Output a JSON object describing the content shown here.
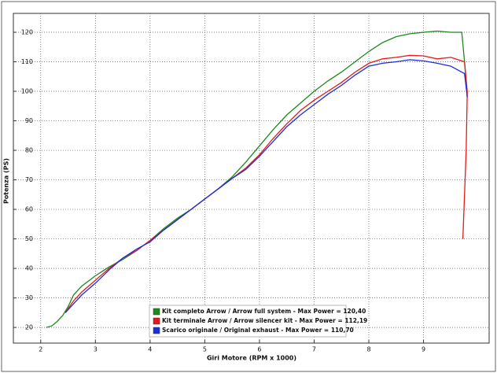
{
  "chart_data": {
    "type": "line",
    "xlabel": "Giri Motore (RPM x 1000)",
    "ylabel": "Potenza (PS)",
    "xlim": [
      1.5,
      10.2
    ],
    "xticks": [
      2,
      3,
      4,
      5,
      6,
      7,
      8,
      9
    ],
    "ylim": [
      14.7,
      126.4
    ],
    "yticks": [
      20,
      30,
      40,
      50,
      60,
      70,
      80,
      90,
      100,
      110,
      120
    ],
    "grid": true,
    "legend": "lower center",
    "series": [
      {
        "name": "Kit completo Arrow / Arrow full system - Max Power = 120,40",
        "color": "#1a8a1a",
        "x": [
          2.1,
          2.2,
          2.3,
          2.4,
          2.5,
          2.6,
          2.75,
          3,
          3.25,
          3.5,
          3.75,
          4,
          4.25,
          4.5,
          4.75,
          5,
          5.25,
          5.5,
          5.75,
          6,
          6.25,
          6.5,
          6.75,
          7,
          7.25,
          7.5,
          7.75,
          8,
          8.25,
          8.5,
          8.75,
          9,
          9.25,
          9.5,
          9.7,
          9.75,
          9.8
        ],
        "values": [
          20,
          20.5,
          22,
          24,
          27,
          31,
          34,
          37.5,
          40.5,
          43,
          46,
          49.5,
          53.5,
          57,
          60,
          63.5,
          67,
          71,
          76,
          81.5,
          87,
          92,
          96,
          100,
          103.5,
          106.5,
          110,
          113.5,
          116.5,
          118.5,
          119.5,
          120,
          120.4,
          120,
          120,
          110,
          98
        ]
      },
      {
        "name": "Kit terminale Arrow / Arrow silencer kit - Max Power = 112,19",
        "color": "#e81818",
        "x": [
          2.45,
          2.6,
          2.75,
          3,
          3.25,
          3.5,
          3.75,
          4,
          4.25,
          4.5,
          4.75,
          5,
          5.25,
          5.5,
          5.75,
          6,
          6.25,
          6.5,
          6.75,
          7,
          7.25,
          7.5,
          7.75,
          8,
          8.25,
          8.5,
          8.75,
          9,
          9.25,
          9.5,
          9.75,
          9.8,
          9.78,
          9.72
        ],
        "values": [
          25,
          29,
          32,
          36,
          40,
          43.5,
          46,
          49.5,
          53,
          56.5,
          60,
          63.5,
          67,
          70.5,
          74,
          78.5,
          84,
          89,
          93.5,
          97,
          100,
          103,
          106.5,
          109.5,
          111,
          111.5,
          112.2,
          112,
          111,
          111.5,
          110,
          100,
          80,
          50
        ]
      },
      {
        "name": "Scarico originale / Original exhaust - Max Power = 110,70",
        "color": "#1a2ee0",
        "x": [
          2.45,
          2.6,
          2.75,
          3,
          3.25,
          3.5,
          3.75,
          4,
          4.25,
          4.5,
          4.75,
          5,
          5.25,
          5.5,
          5.75,
          6,
          6.25,
          6.5,
          6.75,
          7,
          7.25,
          7.5,
          7.75,
          8,
          8.25,
          8.5,
          8.75,
          9,
          9.25,
          9.5,
          9.75,
          9.8
        ],
        "values": [
          25,
          28,
          31,
          35,
          39.5,
          43.5,
          46.5,
          49,
          53,
          56.5,
          60,
          63.5,
          67,
          70.5,
          73.5,
          78,
          83,
          88,
          92,
          95.5,
          99,
          102,
          105.5,
          108.5,
          109.5,
          110,
          110.7,
          110.3,
          109.5,
          108.5,
          106,
          98
        ]
      }
    ]
  }
}
